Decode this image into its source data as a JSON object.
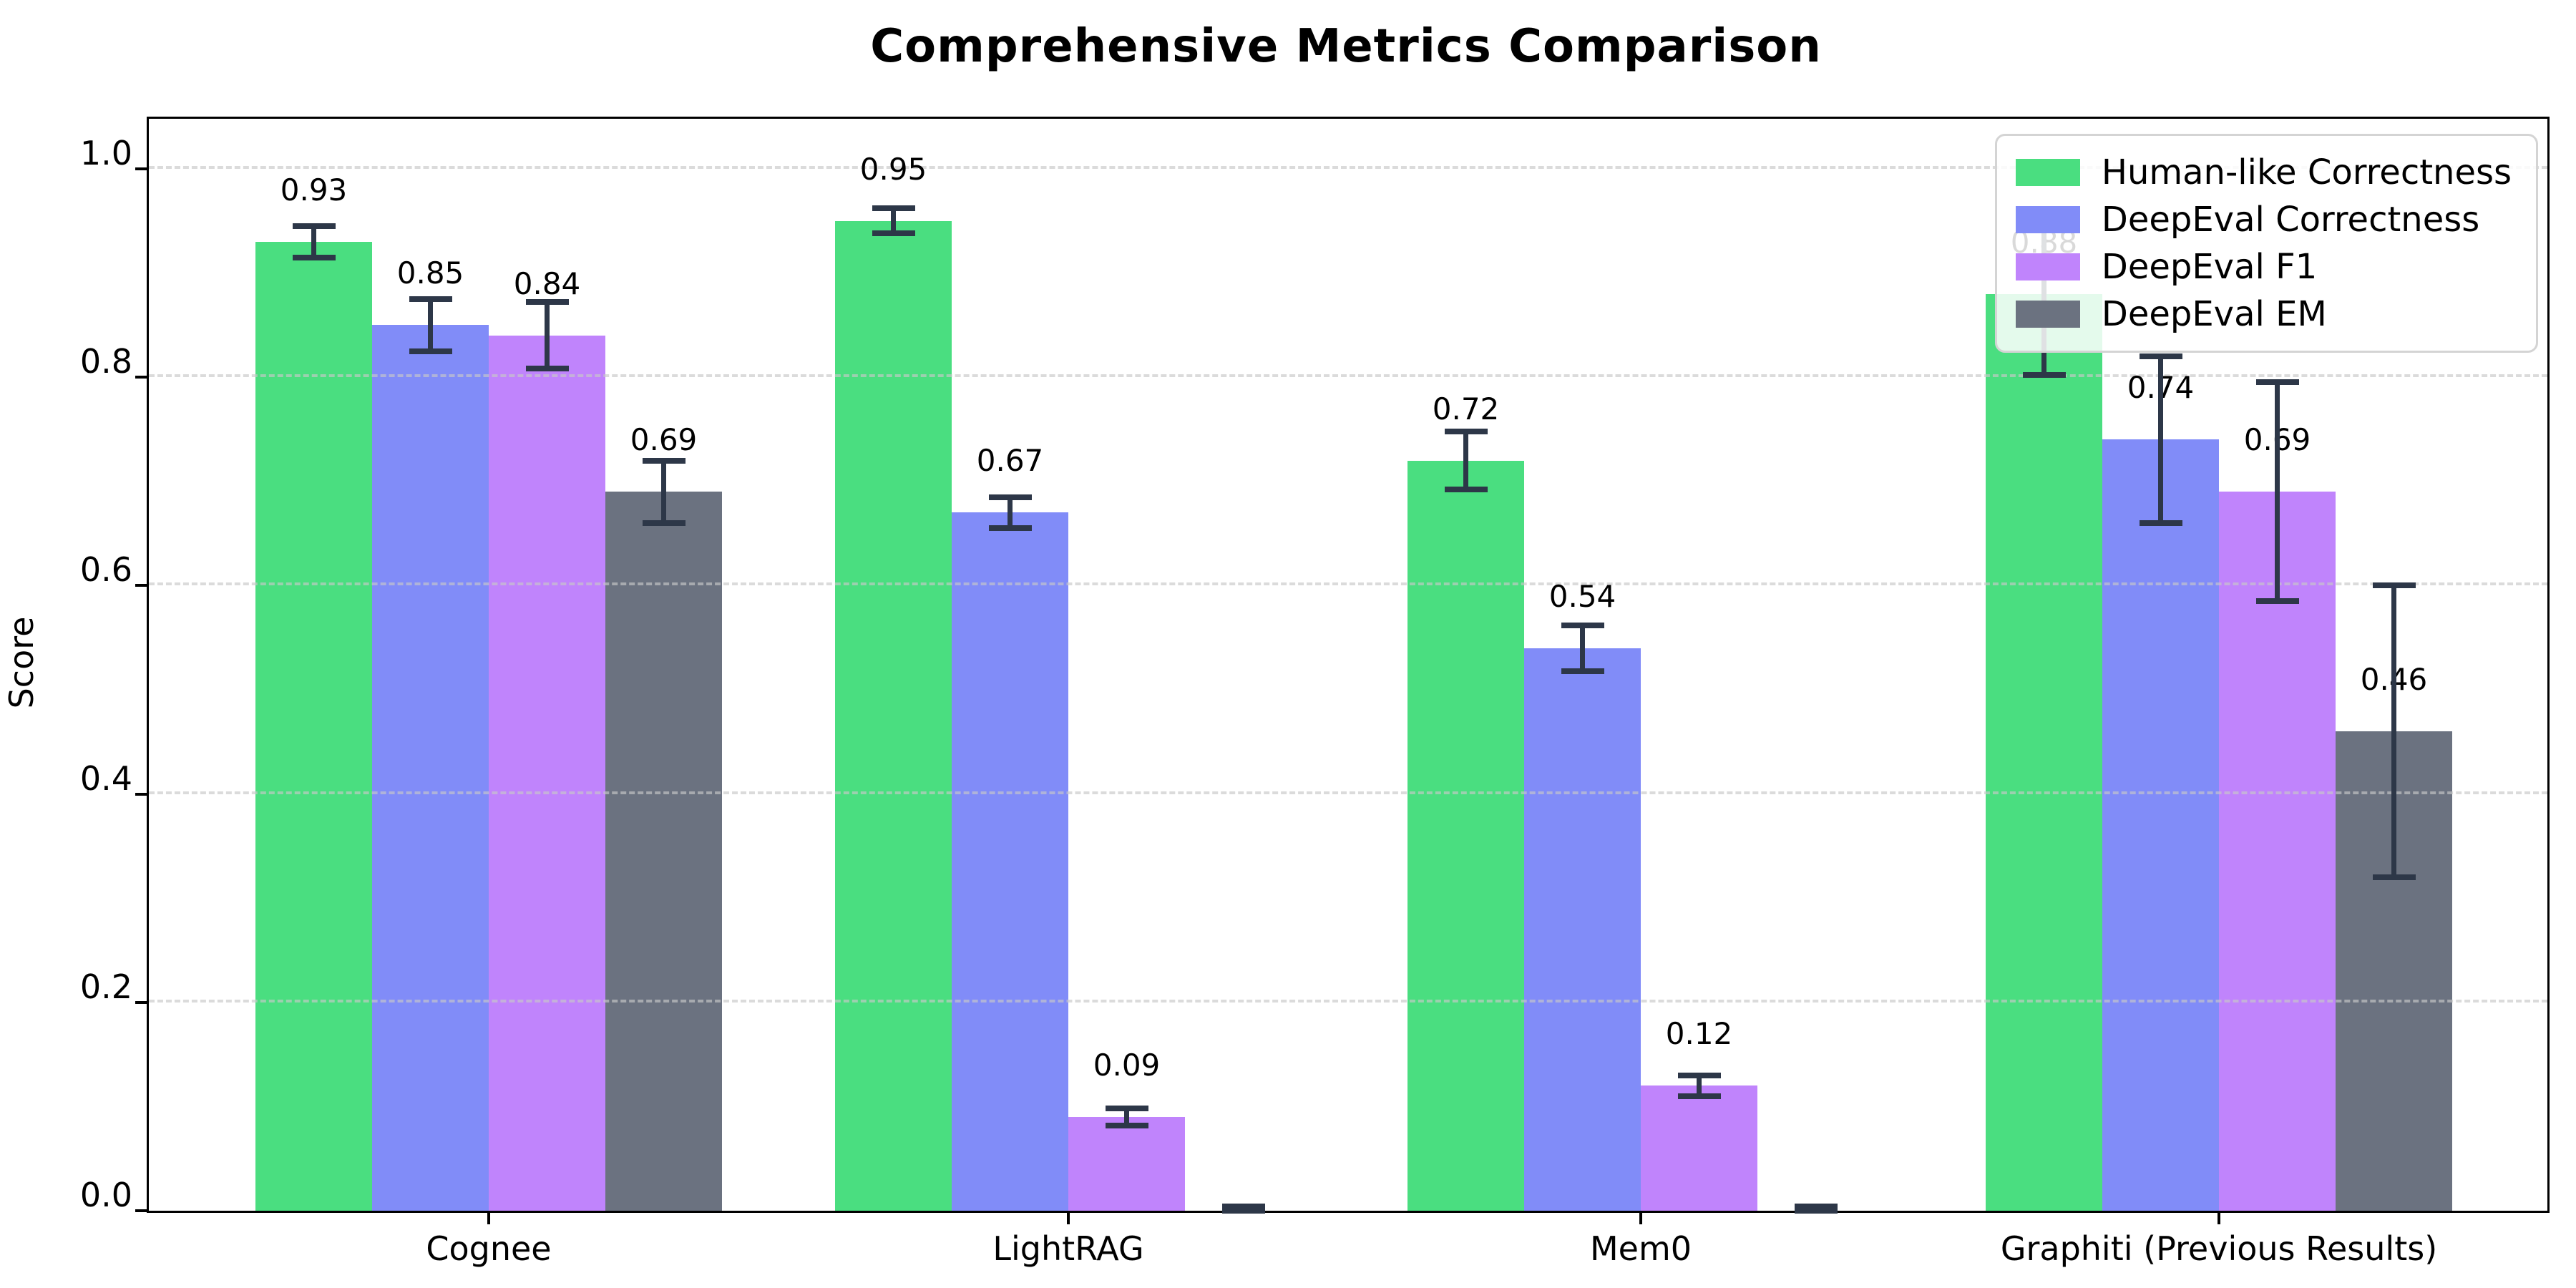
{
  "title": "Comprehensive Metrics Comparison",
  "y_axis": {
    "label": "Score",
    "tick_labels": [
      "0.0",
      "0.2",
      "0.4",
      "0.6",
      "0.8",
      "1.0"
    ]
  },
  "x_axis": {
    "tick_labels": [
      "Cognee",
      "LightRAG",
      "Mem0",
      "Graphiti (Previous Results)"
    ]
  },
  "legend": {
    "position": "upper right",
    "entries": [
      "Human-like Correctness",
      "DeepEval Correctness",
      "DeepEval F1",
      "DeepEval EM"
    ]
  },
  "colors": {
    "human_like": "#4ade80",
    "deepeval_correctness": "#818cf8",
    "deepeval_f1": "#c084fc",
    "deepeval_em": "#6b7280",
    "error_bar": "#2d3748",
    "grid": "#c8c8c8",
    "spine": "#000000"
  },
  "chart_data": {
    "type": "bar",
    "title": "Comprehensive Metrics Comparison",
    "xlabel": "",
    "ylabel": "Score",
    "ylim": [
      0.0,
      1.048
    ],
    "yticks": [
      0.0,
      0.2,
      0.4,
      0.6,
      0.8,
      1.0
    ],
    "grid": "horizontal dashed, drawn over bars",
    "legend_position": "upper right",
    "categories": [
      "Cognee",
      "LightRAG",
      "Mem0",
      "Graphiti (Previous Results)"
    ],
    "series": [
      {
        "name": "Human-like Correctness",
        "color": "#4ade80",
        "values": [
          0.93,
          0.95,
          0.72,
          0.88
        ],
        "errors": [
          0.015,
          0.012,
          0.028,
          0.078
        ],
        "value_labels": [
          "0.93",
          "0.95",
          "0.72",
          "0.88"
        ]
      },
      {
        "name": "DeepEval Correctness",
        "color": "#818cf8",
        "values": [
          0.85,
          0.67,
          0.54,
          0.74
        ],
        "errors": [
          0.025,
          0.015,
          0.022,
          0.08
        ],
        "value_labels": [
          "0.85",
          "0.67",
          "0.54",
          "0.74"
        ]
      },
      {
        "name": "DeepEval F1",
        "color": "#c084fc",
        "values": [
          0.84,
          0.09,
          0.12,
          0.69
        ],
        "errors": [
          0.032,
          0.008,
          0.01,
          0.105
        ],
        "value_labels": [
          "0.84",
          "0.09",
          "0.12",
          "0.69"
        ]
      },
      {
        "name": "DeepEval EM",
        "color": "#6b7280",
        "values": [
          0.69,
          0.0,
          0.0,
          0.46
        ],
        "errors": [
          0.03,
          0.004,
          0.004,
          0.14
        ],
        "value_labels": [
          "0.69",
          "",
          "",
          "0.46"
        ]
      }
    ]
  }
}
